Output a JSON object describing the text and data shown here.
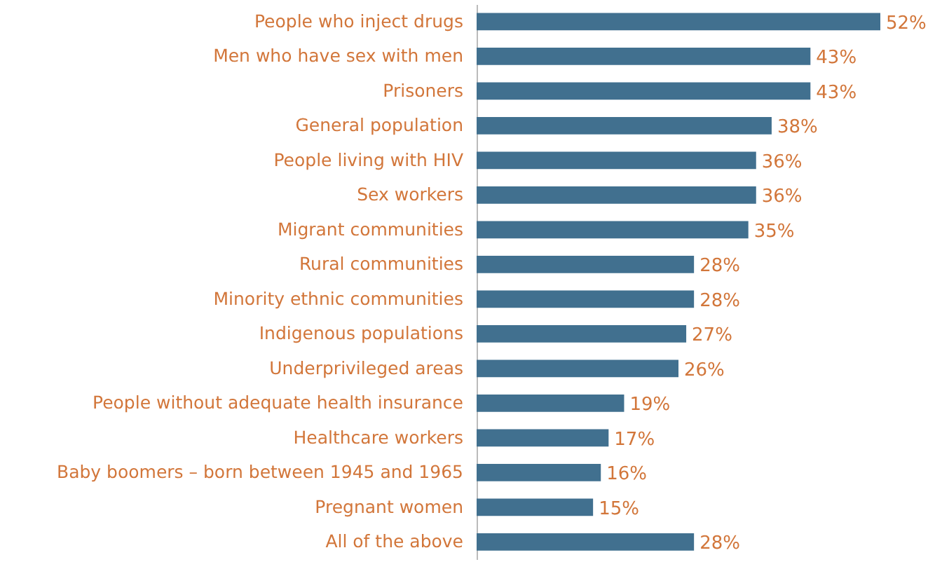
{
  "chart_data": {
    "type": "bar",
    "orientation": "horizontal",
    "categories": [
      "People who inject drugs",
      "Men who have sex with men",
      "Prisoners",
      "General population",
      "People living with HIV",
      "Sex workers",
      "Migrant communities",
      "Rural communities",
      "Minority ethnic communities",
      "Indigenous populations",
      "Underprivileged areas",
      "People without adequate health insurance",
      "Healthcare workers",
      "Baby boomers – born between 1945 and 1965",
      "Pregnant women",
      "All of the above"
    ],
    "values": [
      52,
      43,
      43,
      38,
      36,
      36,
      35,
      28,
      28,
      27,
      26,
      19,
      17,
      16,
      15,
      28
    ],
    "value_labels": [
      "52%",
      "43%",
      "43%",
      "38%",
      "36%",
      "36%",
      "35%",
      "28%",
      "28%",
      "27%",
      "26%",
      "19%",
      "17%",
      "16%",
      "15%",
      "28%"
    ],
    "color": "#41708f",
    "tick_labels": "y"
  }
}
